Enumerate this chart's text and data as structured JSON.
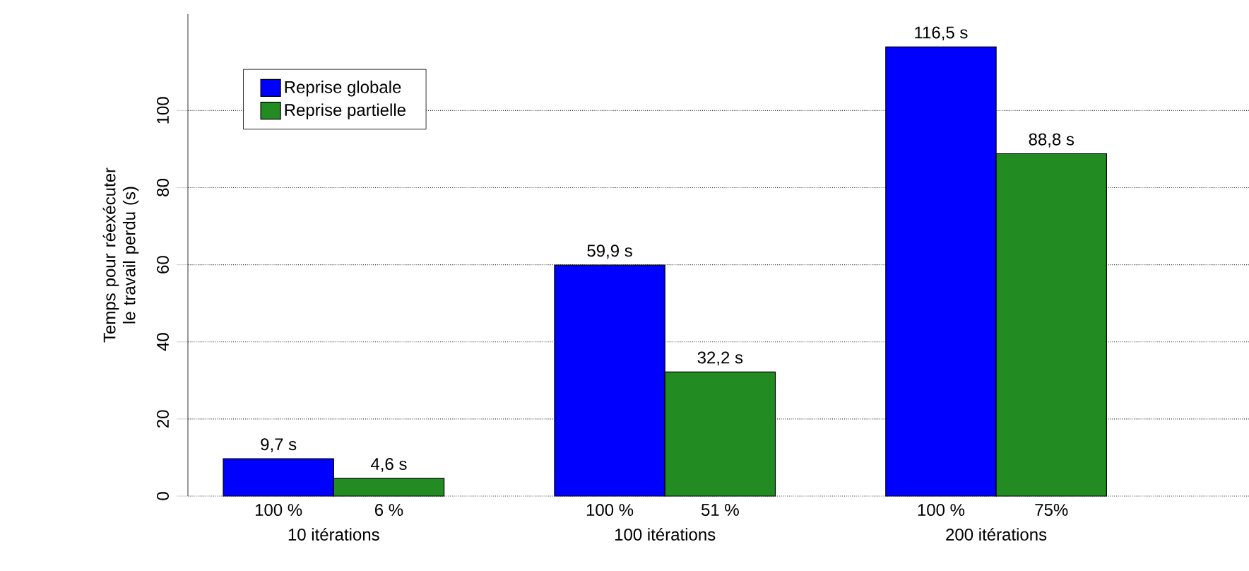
{
  "chart_data": {
    "type": "bar",
    "ylabel": "Temps pour réexécuter le travail perdu (s)",
    "categories": [
      "10 itérations",
      "100 itérations",
      "200 itérations"
    ],
    "series": [
      {
        "name": "Reprise globale",
        "color": "#0000ff",
        "values": [
          9.7,
          59.9,
          116.5
        ],
        "value_labels": [
          "9,7 s",
          "59,9 s",
          "116,5 s"
        ]
      },
      {
        "name": "Reprise partielle",
        "color": "#228b22",
        "values": [
          4.6,
          32.2,
          88.8
        ],
        "value_labels": [
          "4,6 s",
          "32,2 s",
          "88,8 s"
        ]
      }
    ],
    "annotations": [
      "100 %",
      "6 %",
      "100 %",
      "51 %",
      "100 %",
      "75%"
    ],
    "ylim": [
      0,
      125
    ],
    "yticks": [
      0,
      20,
      40,
      60,
      80,
      100
    ],
    "grid": "y",
    "legend": "top left"
  }
}
